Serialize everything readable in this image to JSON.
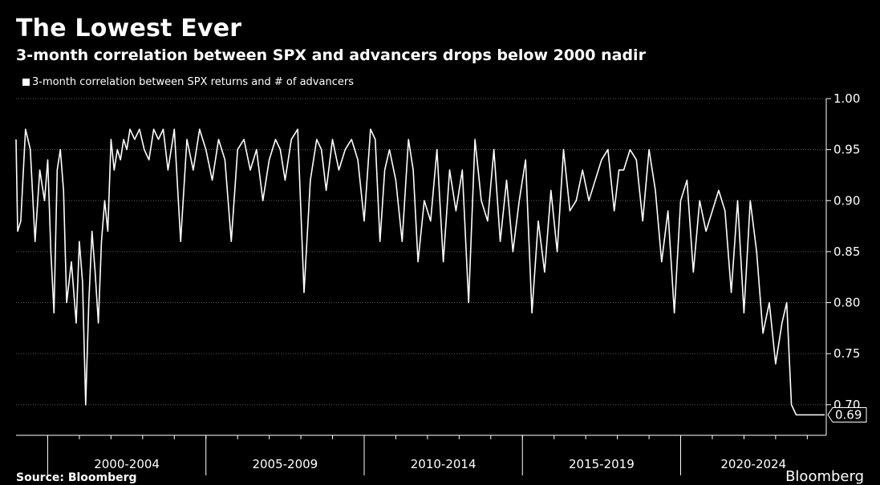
{
  "chart_data": {
    "type": "line",
    "title": "The Lowest Ever",
    "subtitle": "3-month correlation between SPX and advancers drops below 2000 nadir",
    "series": [
      {
        "name": "3-month correlation between SPX returns and # of advancers",
        "color": "#ffffff",
        "x": [
          1999.0,
          1999.05,
          1999.15,
          1999.3,
          1999.45,
          1999.6,
          1999.75,
          1999.9,
          2000.0,
          2000.1,
          2000.2,
          2000.3,
          2000.4,
          2000.5,
          2000.6,
          2000.75,
          2000.9,
          2001.0,
          2001.1,
          2001.2,
          2001.3,
          2001.4,
          2001.5,
          2001.6,
          2001.7,
          2001.8,
          2001.9,
          2002.0,
          2002.1,
          2002.2,
          2002.3,
          2002.4,
          2002.5,
          2002.6,
          2002.75,
          2002.9,
          2003.05,
          2003.2,
          2003.35,
          2003.5,
          2003.65,
          2003.8,
          2004.0,
          2004.2,
          2004.4,
          2004.6,
          2004.8,
          2005.0,
          2005.2,
          2005.4,
          2005.6,
          2005.8,
          2006.0,
          2006.2,
          2006.4,
          2006.6,
          2006.8,
          2007.0,
          2007.2,
          2007.35,
          2007.5,
          2007.7,
          2007.9,
          2008.1,
          2008.3,
          2008.5,
          2008.65,
          2008.8,
          2009.0,
          2009.2,
          2009.4,
          2009.6,
          2009.8,
          2010.0,
          2010.2,
          2010.35,
          2010.5,
          2010.65,
          2010.8,
          2011.0,
          2011.2,
          2011.4,
          2011.55,
          2011.7,
          2011.9,
          2012.1,
          2012.3,
          2012.5,
          2012.7,
          2012.9,
          2013.1,
          2013.3,
          2013.5,
          2013.7,
          2013.9,
          2014.1,
          2014.3,
          2014.5,
          2014.7,
          2014.9,
          2015.1,
          2015.3,
          2015.5,
          2015.7,
          2015.9,
          2016.1,
          2016.3,
          2016.5,
          2016.7,
          2016.9,
          2017.1,
          2017.3,
          2017.5,
          2017.7,
          2017.9,
          2018.05,
          2018.2,
          2018.4,
          2018.6,
          2018.8,
          2019.0,
          2019.2,
          2019.4,
          2019.6,
          2019.8,
          2020.0,
          2020.2,
          2020.4,
          2020.6,
          2020.8,
          2021.0,
          2021.2,
          2021.4,
          2021.6,
          2021.8,
          2022.0,
          2022.2,
          2022.4,
          2022.6,
          2022.8,
          2023.0,
          2023.2,
          2023.35,
          2023.5,
          2023.65,
          2023.8,
          2023.95,
          2024.1,
          2024.25,
          2024.4,
          2024.5,
          2024.55
        ],
        "values": [
          0.96,
          0.87,
          0.88,
          0.97,
          0.95,
          0.86,
          0.93,
          0.9,
          0.94,
          0.85,
          0.79,
          0.93,
          0.95,
          0.91,
          0.8,
          0.84,
          0.78,
          0.86,
          0.82,
          0.7,
          0.8,
          0.87,
          0.83,
          0.78,
          0.86,
          0.9,
          0.87,
          0.96,
          0.93,
          0.95,
          0.94,
          0.96,
          0.95,
          0.97,
          0.96,
          0.97,
          0.95,
          0.94,
          0.97,
          0.96,
          0.97,
          0.93,
          0.97,
          0.86,
          0.96,
          0.93,
          0.97,
          0.95,
          0.92,
          0.96,
          0.94,
          0.86,
          0.95,
          0.96,
          0.93,
          0.95,
          0.9,
          0.94,
          0.96,
          0.95,
          0.92,
          0.96,
          0.97,
          0.81,
          0.92,
          0.96,
          0.95,
          0.91,
          0.96,
          0.93,
          0.95,
          0.96,
          0.94,
          0.88,
          0.97,
          0.96,
          0.86,
          0.93,
          0.95,
          0.92,
          0.86,
          0.96,
          0.93,
          0.84,
          0.9,
          0.88,
          0.95,
          0.84,
          0.93,
          0.89,
          0.93,
          0.8,
          0.96,
          0.9,
          0.88,
          0.95,
          0.86,
          0.92,
          0.85,
          0.9,
          0.94,
          0.79,
          0.88,
          0.83,
          0.91,
          0.85,
          0.95,
          0.89,
          0.9,
          0.93,
          0.9,
          0.92,
          0.94,
          0.95,
          0.89,
          0.93,
          0.93,
          0.95,
          0.94,
          0.88,
          0.95,
          0.91,
          0.84,
          0.89,
          0.79,
          0.9,
          0.92,
          0.83,
          0.9,
          0.87,
          0.89,
          0.91,
          0.89,
          0.81,
          0.9,
          0.79,
          0.9,
          0.85,
          0.77,
          0.8,
          0.74,
          0.78,
          0.8,
          0.7,
          0.69,
          0.69,
          0.69,
          0.69,
          0.69,
          0.69,
          0.69,
          0.69
        ]
      }
    ],
    "categories": [
      "2000-2004",
      "2005-2009",
      "2010-2014",
      "2015-2019",
      "2020-2024"
    ],
    "y_ticks": [
      "0.70",
      "0.75",
      "0.80",
      "0.85",
      "0.90",
      "0.95",
      "1.00"
    ],
    "ylim": [
      0.67,
      1.0
    ],
    "xlim": [
      1999.0,
      2024.6
    ],
    "last_value_label": "0.69",
    "grid": true,
    "y_axis_side": "right"
  },
  "source": "Source: Bloomberg",
  "brand": "Bloomberg"
}
